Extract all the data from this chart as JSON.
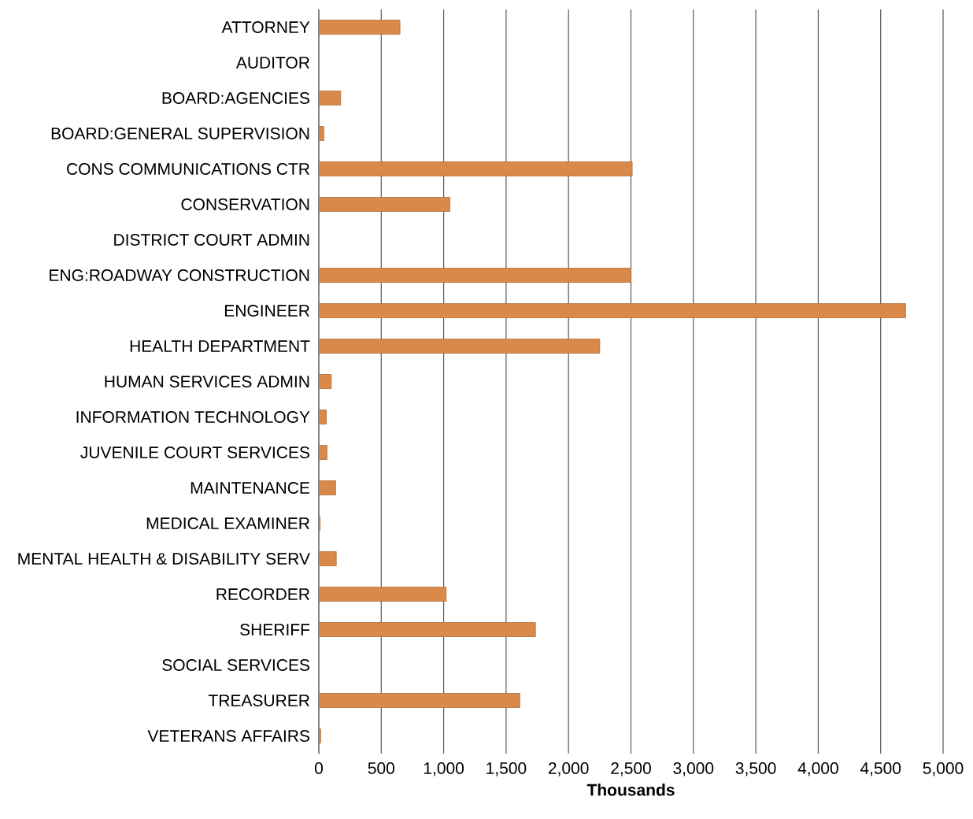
{
  "chart_data": {
    "type": "bar",
    "orientation": "horizontal",
    "xlabel": "Thousands",
    "categories": [
      "ATTORNEY",
      "AUDITOR",
      "BOARD:AGENCIES",
      "BOARD:GENERAL SUPERVISION",
      "CONS COMMUNICATIONS CTR",
      "CONSERVATION",
      "DISTRICT COURT ADMIN",
      "ENG:ROADWAY CONSTRUCTION",
      "ENGINEER",
      "HEALTH DEPARTMENT",
      "HUMAN SERVICES ADMIN",
      "INFORMATION TECHNOLOGY",
      "JUVENILE COURT SERVICES",
      "MAINTENANCE",
      "MEDICAL EXAMINER",
      "MENTAL HEALTH & DISABILITY SERV",
      "RECORDER",
      "SHERIFF",
      "SOCIAL SERVICES",
      "TREASURER",
      "VETERANS AFFAIRS"
    ],
    "values": [
      650,
      null,
      175,
      40,
      2510,
      1050,
      null,
      2500,
      4700,
      2250,
      100,
      60,
      65,
      135,
      10,
      140,
      1020,
      1735,
      null,
      1610,
      15
    ],
    "color": "#d98a4a",
    "xlim": [
      0,
      5000
    ],
    "xticks": [
      0,
      500,
      {
        "value": 1000,
        "label": "1,000"
      },
      {
        "value": 1500,
        "label": "1,500"
      },
      {
        "value": 2000,
        "label": "2,000"
      },
      {
        "value": 2500,
        "label": "2,500"
      },
      {
        "value": 3000,
        "label": "3,000"
      },
      {
        "value": 3500,
        "label": "3,500"
      },
      {
        "value": 4000,
        "label": "4,000"
      },
      {
        "value": 4500,
        "label": "4,500"
      },
      {
        "value": 5000,
        "label": "5,000"
      }
    ],
    "grid": "x"
  }
}
